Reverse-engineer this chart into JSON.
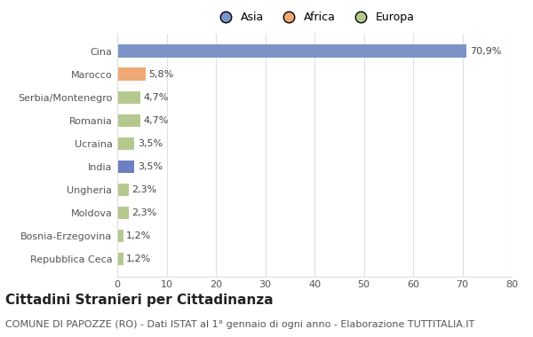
{
  "categories": [
    "Repubblica Ceca",
    "Bosnia-Erzegovina",
    "Moldova",
    "Ungheria",
    "India",
    "Ucraina",
    "Romania",
    "Serbia/Montenegro",
    "Marocco",
    "Cina"
  ],
  "values": [
    1.2,
    1.2,
    2.3,
    2.3,
    3.5,
    3.5,
    4.7,
    4.7,
    5.8,
    70.9
  ],
  "labels": [
    "1,2%",
    "1,2%",
    "2,3%",
    "2,3%",
    "3,5%",
    "3,5%",
    "4,7%",
    "4,7%",
    "5,8%",
    "70,9%"
  ],
  "colors": [
    "#b5c98e",
    "#b5c98e",
    "#b5c98e",
    "#b5c98e",
    "#6c7fbe",
    "#b5c98e",
    "#b5c98e",
    "#b5c98e",
    "#f0a875",
    "#7b93c8"
  ],
  "legend": [
    {
      "label": "Asia",
      "color": "#7b93c8"
    },
    {
      "label": "Africa",
      "color": "#f0a875"
    },
    {
      "label": "Europa",
      "color": "#b5c98e"
    }
  ],
  "title": "Cittadini Stranieri per Cittadinanza",
  "subtitle": "COMUNE DI PAPOZZE (RO) - Dati ISTAT al 1° gennaio di ogni anno - Elaborazione TUTTITALIA.IT",
  "xlim": [
    0,
    80
  ],
  "xticks": [
    0,
    10,
    20,
    30,
    40,
    50,
    60,
    70,
    80
  ],
  "background_color": "#ffffff",
  "grid_color": "#e0e0e0",
  "title_fontsize": 11,
  "subtitle_fontsize": 8,
  "label_fontsize": 8,
  "tick_fontsize": 8,
  "legend_fontsize": 9
}
